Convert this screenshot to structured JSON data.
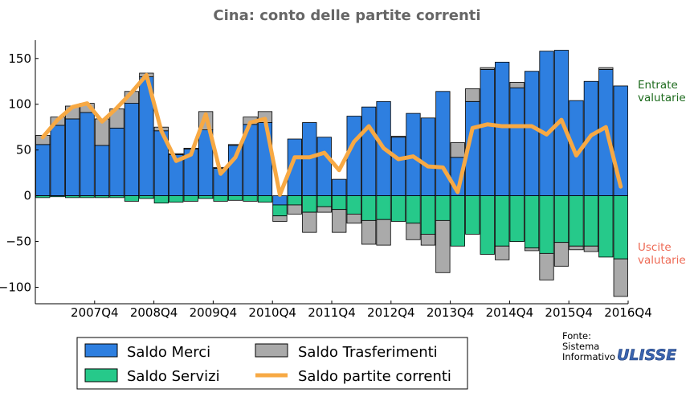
{
  "chart_data": {
    "type": "bar",
    "title": "Cina: conto delle partite correnti",
    "ylim": [
      -118,
      170
    ],
    "yticks": [
      150,
      100,
      50,
      0,
      -50,
      -100
    ],
    "ytick_labels": [
      "150",
      "100",
      "50",
      "0",
      "−50",
      "−100"
    ],
    "x_tick_labels": [
      "2007Q4",
      "2008Q4",
      "2009Q4",
      "2010Q4",
      "2011Q4",
      "2012Q4",
      "2013Q4",
      "2014Q4",
      "2015Q4",
      "2016Q4"
    ],
    "x_tick_positions": [
      4,
      8,
      12,
      16,
      20,
      24,
      28,
      32,
      36,
      40
    ],
    "categories": [
      "2007Q1",
      "2007Q2",
      "2007Q3",
      "2007Q4",
      "2008Q1",
      "2008Q2",
      "2008Q3",
      "2008Q4",
      "2009Q1",
      "2009Q2",
      "2009Q3",
      "2009Q4",
      "2010Q1",
      "2010Q2",
      "2010Q3",
      "2010Q4",
      "2011Q1",
      "2011Q2",
      "2011Q3",
      "2011Q4",
      "2012Q1",
      "2012Q2",
      "2012Q3",
      "2012Q4",
      "2013Q1",
      "2013Q2",
      "2013Q3",
      "2013Q4",
      "2014Q1",
      "2014Q2",
      "2014Q3",
      "2014Q4",
      "2015Q1",
      "2015Q2",
      "2015Q3",
      "2015Q4",
      "2016Q1",
      "2016Q2",
      "2016Q3",
      "2016Q4"
    ],
    "series": [
      {
        "name": "Saldo Merci",
        "type": "bar",
        "color": "#2e7fe0",
        "values": [
          56,
          77,
          84,
          91,
          55,
          74,
          101,
          130,
          71,
          45,
          51,
          72,
          30,
          55,
          78,
          80,
          -10,
          62,
          80,
          64,
          18,
          87,
          97,
          103,
          64,
          90,
          85,
          114,
          42,
          103,
          138,
          146,
          118,
          136,
          158,
          159,
          104,
          125,
          138,
          120
        ]
      },
      {
        "name": "Saldo Servizi",
        "type": "bar",
        "color": "#26c98a",
        "values": [
          -2,
          -1,
          -2,
          -2,
          -2,
          -2,
          -6,
          -3,
          -8,
          -7,
          -6,
          -3,
          -6,
          -5,
          -6,
          -7,
          -12,
          -10,
          -18,
          -12,
          -15,
          -20,
          -27,
          -26,
          -28,
          -30,
          -42,
          -27,
          -55,
          -42,
          -64,
          -55,
          -50,
          -57,
          -63,
          -51,
          -55,
          -55,
          -67,
          -69
        ]
      },
      {
        "name": "Saldo Trasferimenti",
        "type": "bar",
        "color": "#aaaaaa",
        "values": [
          10,
          9,
          14,
          10,
          29,
          21,
          13,
          4,
          4,
          1,
          1,
          20,
          1,
          1,
          8,
          12,
          -6,
          -10,
          -22,
          -6,
          -25,
          -10,
          -26,
          -28,
          1,
          -18,
          -12,
          -57,
          16,
          14,
          2,
          -15,
          6,
          -3,
          -29,
          -26,
          -4,
          -6,
          2,
          -41
        ]
      },
      {
        "name": "Saldo partite correnti",
        "type": "line",
        "color": "#f7a944",
        "values": [
          64,
          83,
          97,
          101,
          81,
          96,
          113,
          132,
          71,
          38,
          45,
          89,
          24,
          42,
          80,
          84,
          1,
          42,
          42,
          47,
          28,
          59,
          76,
          52,
          40,
          43,
          32,
          31,
          4,
          74,
          78,
          76,
          76,
          76,
          67,
          83,
          44,
          66,
          75,
          10
        ]
      }
    ],
    "legend": [
      "Saldo Merci",
      "Saldo Servizi",
      "Saldo Trasferimenti",
      "Saldo partite correnti"
    ],
    "legend_placement": "bottom",
    "annotations": {
      "top": {
        "lines": [
          "Entrate",
          "valutarie"
        ],
        "color": "#1d6b1d"
      },
      "bottom": {
        "lines": [
          "Uscite",
          "valutarie"
        ],
        "color": "#ee6a55"
      }
    },
    "grid": false
  },
  "source": {
    "lines": [
      "Fonte:",
      "Sistema",
      "Informativo"
    ],
    "logo_text": "ULISSE"
  },
  "colors": {
    "edge": "#000000",
    "axis": "#000000"
  }
}
